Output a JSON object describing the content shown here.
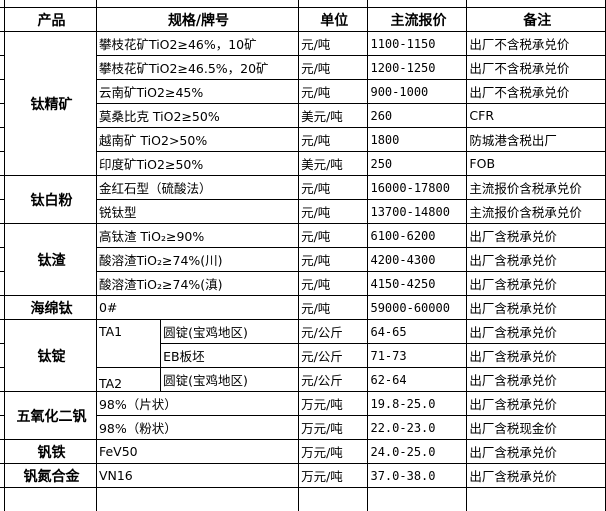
{
  "headers": {
    "product": "产品",
    "spec": "规格/牌号",
    "unit": "单位",
    "price": "主流报价",
    "note": "备注"
  },
  "groups": [
    {
      "product": "钛精矿",
      "rows": [
        {
          "spec": "攀枝花矿TiO2≥46%，10矿",
          "unit": "元/吨",
          "price": "1100-1150",
          "note": "出厂不含税承兑价"
        },
        {
          "spec": "攀枝花矿TiO2≥46.5%，20矿",
          "unit": "元/吨",
          "price": "1200-1250",
          "note": "出厂不含税承兑价"
        },
        {
          "spec": "云南矿TiO2≥45%",
          "unit": "元/吨",
          "price": "900-1000",
          "note": "出厂不含税承兑价"
        },
        {
          "spec": "莫桑比克 TiO2≥50%",
          "unit": "美元/吨",
          "price": "260",
          "note": "CFR"
        },
        {
          "spec": "越南矿 TiO2>50%",
          "unit": "元/吨",
          "price": "1800",
          "note": "防城港含税出厂"
        },
        {
          "spec": "印度矿TiO2≥50%",
          "unit": "美元/吨",
          "price": "250",
          "note": "FOB"
        }
      ]
    },
    {
      "product": "钛白粉",
      "rows": [
        {
          "spec": "金红石型（硫酸法）",
          "unit": "元/吨",
          "price": "16000-17800",
          "note": "主流报价含税承兑价"
        },
        {
          "spec": "锐钛型",
          "unit": "元/吨",
          "price": "13700-14800",
          "note": "主流报价含税承兑价"
        }
      ]
    },
    {
      "product": "钛渣",
      "rows": [
        {
          "spec": "高钛渣 TiO₂≥90%",
          "unit": "元/吨",
          "price": "6100-6200",
          "note": "出厂含税承兑价"
        },
        {
          "spec": "酸溶渣TiO₂≥74%(川)",
          "unit": "元/吨",
          "price": "4200-4300",
          "note": "出厂含税承兑价"
        },
        {
          "spec": "酸溶渣TiO₂≥74%(滇)",
          "unit": "元/吨",
          "price": "4150-4250",
          "note": "出厂含税承兑价"
        }
      ]
    },
    {
      "product": "海绵钛",
      "rows": [
        {
          "spec": "0#",
          "unit": "元/吨",
          "price": "59000-60000",
          "note": "出厂含税承兑价"
        }
      ]
    },
    {
      "product": "钛锭",
      "rows": [
        {
          "grade": "TA1",
          "gradeSpan": 2,
          "spec": "圆锭(宝鸡地区)",
          "unit": "元/公斤",
          "price": "64-65",
          "note": "出厂含税承兑价"
        },
        {
          "spec": "EB板坯",
          "unit": "元/公斤",
          "price": "71-73",
          "note": "出厂含税承兑价"
        },
        {
          "grade": "TA2",
          "gradeSpan": 1,
          "spec": "圆锭(宝鸡地区)",
          "unit": "元/公斤",
          "price": "62-64",
          "note": "出厂含税承兑价"
        }
      ]
    },
    {
      "product": "五氧化二钒",
      "rows": [
        {
          "spec": "98%（片状）",
          "unit": "万元/吨",
          "price": "19.8-25.0",
          "note": "出厂含税承兑价"
        },
        {
          "spec": "98%（粉状）",
          "unit": "万元/吨",
          "price": "22.0-23.0",
          "note": "出厂含税现金价"
        }
      ]
    },
    {
      "product": "钒铁",
      "rows": [
        {
          "spec": "FeV50",
          "unit": "万元/吨",
          "price": "24.0-25.0",
          "note": "出厂含税承兑价"
        }
      ]
    },
    {
      "product": "钒氮合金",
      "rows": [
        {
          "spec": "VN16",
          "unit": "万元/吨",
          "price": "37.0-38.0",
          "note": "出厂含税承兑价"
        }
      ]
    }
  ]
}
